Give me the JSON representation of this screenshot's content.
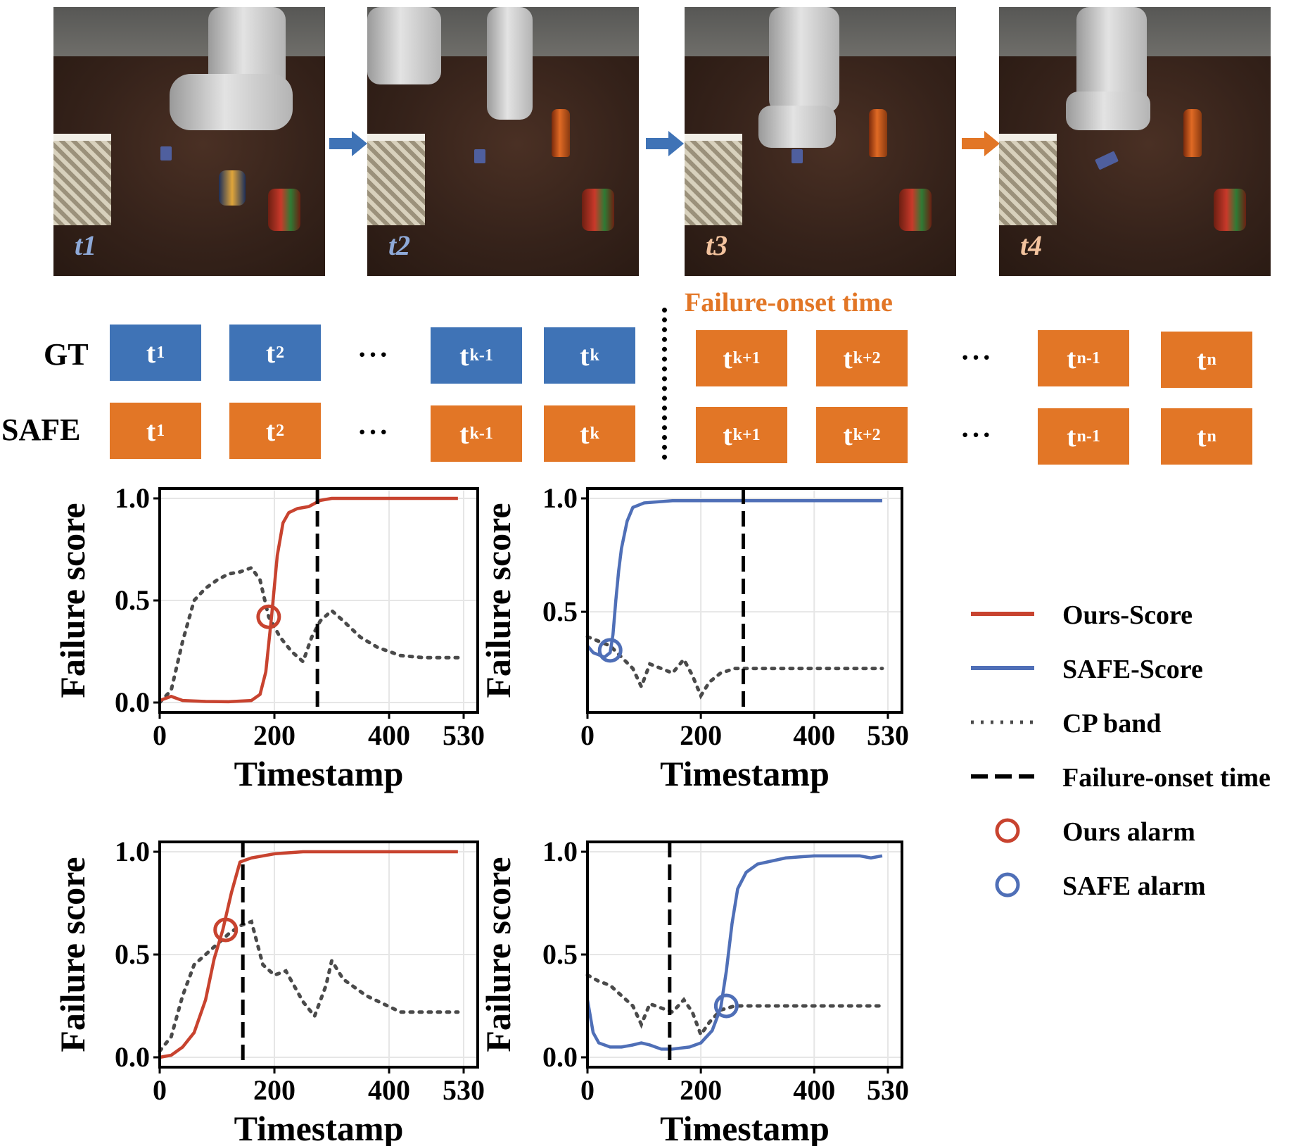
{
  "frames": [
    {
      "label": "t1",
      "label_color": "#8ea9d8"
    },
    {
      "label": "t2",
      "label_color": "#8ea9d8"
    },
    {
      "label": "t3",
      "label_color": "#f3c39e"
    },
    {
      "label": "t4",
      "label_color": "#f3c39e"
    }
  ],
  "arrow_colors": [
    "#3f73b6",
    "#3f73b6",
    "#e27626"
  ],
  "timeline": {
    "onset_title": "Failure-onset time",
    "gt_label": "GT",
    "safe_label": "SAFE",
    "ellipsis": "···",
    "gt_row": [
      {
        "base": "t",
        "sub": "1",
        "color": "blue"
      },
      {
        "base": "t",
        "sub": "2",
        "color": "blue"
      },
      {
        "base": "t",
        "sub": "k-1",
        "color": "blue"
      },
      {
        "base": "t",
        "sub": "k",
        "color": "blue"
      },
      {
        "base": "t",
        "sub": "k+1",
        "color": "orange"
      },
      {
        "base": "t",
        "sub": "k+2",
        "color": "orange"
      },
      {
        "base": "t",
        "sub": "n-1",
        "color": "orange"
      },
      {
        "base": "t",
        "sub": "n",
        "color": "orange"
      }
    ],
    "safe_row": [
      {
        "base": "t",
        "sub": "1",
        "color": "orange"
      },
      {
        "base": "t",
        "sub": "2",
        "color": "orange"
      },
      {
        "base": "t",
        "sub": "k-1",
        "color": "orange"
      },
      {
        "base": "t",
        "sub": "k",
        "color": "orange"
      },
      {
        "base": "t",
        "sub": "k+1",
        "color": "orange"
      },
      {
        "base": "t",
        "sub": "k+2",
        "color": "orange"
      },
      {
        "base": "t",
        "sub": "n-1",
        "color": "orange"
      },
      {
        "base": "t",
        "sub": "n",
        "color": "orange"
      }
    ]
  },
  "legend": {
    "items": [
      {
        "label": "Ours-Score",
        "kind": "line",
        "color": "#c8432f"
      },
      {
        "label": "SAFE-Score",
        "kind": "line",
        "color": "#4f6fb7"
      },
      {
        "label": "CP band",
        "kind": "dotted",
        "color": "#4a4a4a"
      },
      {
        "label": "Failure-onset time",
        "kind": "dashed",
        "color": "#000000"
      },
      {
        "label": "Ours alarm",
        "kind": "circle",
        "color": "#c8432f"
      },
      {
        "label": "SAFE alarm",
        "kind": "circle",
        "color": "#4f6fb7"
      }
    ]
  },
  "chart_data": [
    {
      "type": "line",
      "xlabel": "Timestamp",
      "ylabel": "Failure score",
      "xlim": [
        0,
        530
      ],
      "ylim": [
        0,
        1.0
      ],
      "xticks": [
        0,
        200,
        400,
        530
      ],
      "yticks": [
        0.0,
        0.5,
        1.0
      ],
      "yticklabels": [
        "0.0",
        "0.5",
        "1.0"
      ],
      "grid": true,
      "score_color": "#c8432f",
      "score": {
        "name": "Ours-Score",
        "x": [
          0,
          20,
          40,
          80,
          120,
          160,
          175,
          185,
          195,
          205,
          215,
          225,
          240,
          260,
          280,
          300,
          350,
          400,
          450,
          500,
          520
        ],
        "y": [
          0.01,
          0.03,
          0.01,
          0.005,
          0.004,
          0.01,
          0.04,
          0.15,
          0.42,
          0.72,
          0.88,
          0.93,
          0.95,
          0.96,
          0.99,
          1.0,
          1.0,
          1.0,
          1.0,
          1.0,
          1.0
        ]
      },
      "cp_band": {
        "name": "CP band",
        "x": [
          0,
          20,
          40,
          60,
          80,
          100,
          120,
          140,
          160,
          175,
          190,
          210,
          230,
          250,
          265,
          280,
          300,
          320,
          350,
          380,
          420,
          460,
          500,
          520
        ],
        "y": [
          0.0,
          0.06,
          0.3,
          0.5,
          0.56,
          0.6,
          0.63,
          0.64,
          0.66,
          0.6,
          0.42,
          0.32,
          0.25,
          0.2,
          0.32,
          0.4,
          0.45,
          0.4,
          0.32,
          0.27,
          0.23,
          0.22,
          0.22,
          0.22
        ]
      },
      "onset": 275,
      "alarm": {
        "x": 190,
        "y": 0.42
      }
    },
    {
      "type": "line",
      "xlabel": "Timestamp",
      "ylabel": "Failure score",
      "xlim": [
        0,
        530
      ],
      "ylim": [
        0.1,
        1.0
      ],
      "xticks": [
        0,
        200,
        400,
        530
      ],
      "yticks": [
        0.5,
        1.0
      ],
      "yticklabels": [
        "0.5",
        "1.0"
      ],
      "grid": true,
      "score_color": "#4f6fb7",
      "score": {
        "name": "SAFE-Score",
        "x": [
          0,
          10,
          20,
          30,
          40,
          45,
          50,
          55,
          60,
          70,
          80,
          100,
          150,
          200,
          300,
          400,
          520
        ],
        "y": [
          0.35,
          0.32,
          0.31,
          0.3,
          0.32,
          0.4,
          0.55,
          0.68,
          0.78,
          0.9,
          0.96,
          0.98,
          0.99,
          0.99,
          0.99,
          0.99,
          0.99
        ]
      },
      "cp_band": {
        "name": "CP band",
        "x": [
          0,
          20,
          40,
          60,
          80,
          95,
          110,
          130,
          150,
          170,
          185,
          200,
          215,
          235,
          260,
          275,
          300,
          400,
          520
        ],
        "y": [
          0.39,
          0.37,
          0.35,
          0.3,
          0.25,
          0.17,
          0.27,
          0.25,
          0.23,
          0.29,
          0.22,
          0.13,
          0.19,
          0.23,
          0.25,
          0.25,
          0.25,
          0.25,
          0.25
        ]
      },
      "onset": 275,
      "alarm": {
        "x": 40,
        "y": 0.33
      }
    },
    {
      "type": "line",
      "xlabel": "Timestamp",
      "ylabel": "Failure score",
      "xlim": [
        0,
        530
      ],
      "ylim": [
        0,
        1.0
      ],
      "xticks": [
        0,
        200,
        400,
        530
      ],
      "yticks": [
        0.0,
        0.5,
        1.0
      ],
      "yticklabels": [
        "0.0",
        "0.5",
        "1.0"
      ],
      "grid": true,
      "score_color": "#c8432f",
      "score": {
        "name": "Ours-Score",
        "x": [
          0,
          20,
          40,
          60,
          80,
          95,
          110,
          125,
          140,
          150,
          160,
          200,
          250,
          300,
          400,
          520
        ],
        "y": [
          0.0,
          0.01,
          0.05,
          0.12,
          0.28,
          0.48,
          0.62,
          0.8,
          0.95,
          0.96,
          0.97,
          0.99,
          1.0,
          1.0,
          1.0,
          1.0
        ]
      },
      "cp_band": {
        "name": "CP band",
        "x": [
          0,
          20,
          40,
          60,
          80,
          100,
          120,
          140,
          160,
          180,
          200,
          220,
          250,
          270,
          290,
          300,
          320,
          360,
          420,
          480,
          520
        ],
        "y": [
          0.03,
          0.1,
          0.3,
          0.45,
          0.5,
          0.55,
          0.6,
          0.64,
          0.66,
          0.45,
          0.4,
          0.42,
          0.27,
          0.2,
          0.35,
          0.47,
          0.38,
          0.3,
          0.22,
          0.22,
          0.22
        ]
      },
      "onset": 145,
      "alarm": {
        "x": 115,
        "y": 0.62
      }
    },
    {
      "type": "line",
      "xlabel": "Timestamp",
      "ylabel": "Failure score",
      "xlim": [
        0,
        530
      ],
      "ylim": [
        0,
        1.0
      ],
      "xticks": [
        0,
        200,
        400,
        530
      ],
      "yticks": [
        0.0,
        0.5,
        1.0
      ],
      "yticklabels": [
        "0.0",
        "0.5",
        "1.0"
      ],
      "grid": true,
      "score_color": "#4f6fb7",
      "score": {
        "name": "SAFE-Score",
        "x": [
          0,
          10,
          20,
          40,
          60,
          80,
          95,
          110,
          130,
          150,
          180,
          200,
          220,
          235,
          245,
          255,
          265,
          280,
          300,
          350,
          400,
          450,
          480,
          500,
          520
        ],
        "y": [
          0.28,
          0.12,
          0.07,
          0.05,
          0.05,
          0.06,
          0.07,
          0.06,
          0.04,
          0.04,
          0.05,
          0.07,
          0.13,
          0.24,
          0.42,
          0.65,
          0.82,
          0.9,
          0.94,
          0.97,
          0.98,
          0.98,
          0.98,
          0.97,
          0.98
        ]
      },
      "cp_band": {
        "name": "CP band",
        "x": [
          0,
          20,
          40,
          60,
          80,
          95,
          110,
          130,
          150,
          170,
          185,
          200,
          215,
          235,
          260,
          300,
          400,
          520
        ],
        "y": [
          0.4,
          0.37,
          0.35,
          0.3,
          0.25,
          0.16,
          0.26,
          0.24,
          0.22,
          0.28,
          0.22,
          0.11,
          0.17,
          0.23,
          0.25,
          0.25,
          0.25,
          0.25
        ]
      },
      "onset": 145,
      "alarm": {
        "x": 245,
        "y": 0.25
      }
    }
  ]
}
